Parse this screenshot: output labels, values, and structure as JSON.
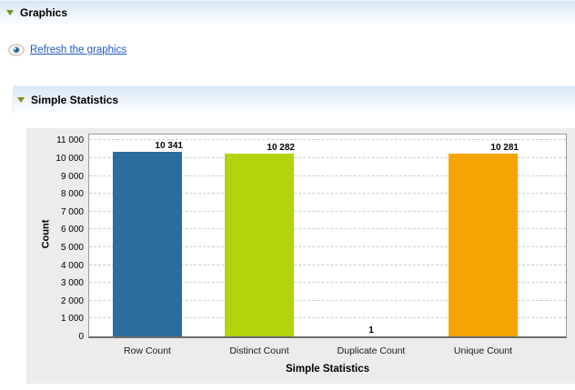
{
  "graphics_section": {
    "title": "Graphics"
  },
  "refresh_link": {
    "label": "Refresh the graphics",
    "icon": "eye-icon",
    "color": "#1b5bc4"
  },
  "statistics_section": {
    "title": "Simple Statistics"
  },
  "chart_data": {
    "type": "bar",
    "title": "",
    "xlabel": "Simple Statistics",
    "ylabel": "Count",
    "categories": [
      "Row Count",
      "Distinct Count",
      "Duplicate Count",
      "Unique Count"
    ],
    "values": [
      10341,
      10282,
      1,
      10281
    ],
    "value_labels": [
      "10 341",
      "10 282",
      "1",
      "10 281"
    ],
    "bar_colors": [
      "#2b6d9d",
      "#b5d30b",
      "#9b9b9b",
      "#f5a503"
    ],
    "ylim": [
      0,
      11330
    ],
    "ytick_interval": 1000,
    "ytick_labels": [
      "0",
      "1 000",
      "2 000",
      "3 000",
      "4 000",
      "5 000",
      "6 000",
      "7 000",
      "8 000",
      "9 000",
      "10 000",
      "11 000"
    ],
    "grid": "horizontal-dashed",
    "legend": "none"
  }
}
